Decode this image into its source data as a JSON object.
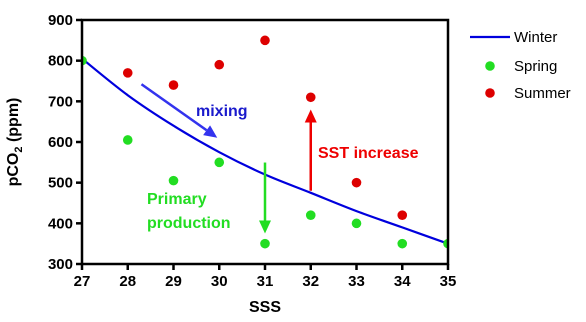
{
  "chart_data": {
    "type": "scatter",
    "title": "",
    "xlabel": "SSS",
    "ylabel": {
      "main": "pCO",
      "sub": "2",
      "rest": " (ppm)"
    },
    "xlim": [
      27,
      35
    ],
    "ylim": [
      300,
      900
    ],
    "xticks": [
      "27",
      "28",
      "29",
      "30",
      "31",
      "32",
      "33",
      "34",
      "35"
    ],
    "yticks": [
      "300",
      "400",
      "500",
      "600",
      "700",
      "800",
      "900"
    ],
    "grid": false,
    "legend_position": "right",
    "series": [
      {
        "name": "Winter",
        "kind": "line",
        "color": "#0000dd",
        "x": [
          27,
          28,
          29,
          30,
          31,
          32,
          33,
          34,
          35
        ],
        "y": [
          805,
          715,
          640,
          575,
          520,
          475,
          430,
          390,
          350
        ]
      },
      {
        "name": "Spring",
        "kind": "scatter",
        "color": "#22dd22",
        "x": [
          27,
          28,
          29,
          30,
          31,
          32,
          33,
          34,
          35
        ],
        "y": [
          800,
          605,
          505,
          550,
          350,
          420,
          400,
          350,
          350
        ]
      },
      {
        "name": "Summer",
        "kind": "scatter",
        "color": "#dd0000",
        "x": [
          28,
          29,
          30,
          31,
          32,
          33,
          34
        ],
        "y": [
          770,
          740,
          790,
          850,
          710,
          500,
          420
        ]
      }
    ],
    "annotations": [
      {
        "text": "mixing",
        "color": "#1a1acc",
        "arrow_color": "#3333ee",
        "arrow": {
          "from": [
            28.3,
            742
          ],
          "to": [
            29.3,
            640
          ]
        }
      },
      {
        "text": "SST increase",
        "color": "#ee0000",
        "arrow_color": "#ee0000",
        "arrow": {
          "from": [
            32,
            480
          ],
          "to": [
            32,
            680
          ]
        }
      },
      {
        "lines": [
          "Primary",
          "production"
        ],
        "color": "#22dd22",
        "arrow_color": "#22dd22",
        "arrow": {
          "from": [
            31,
            520
          ],
          "to": [
            31,
            375
          ]
        }
      }
    ]
  }
}
